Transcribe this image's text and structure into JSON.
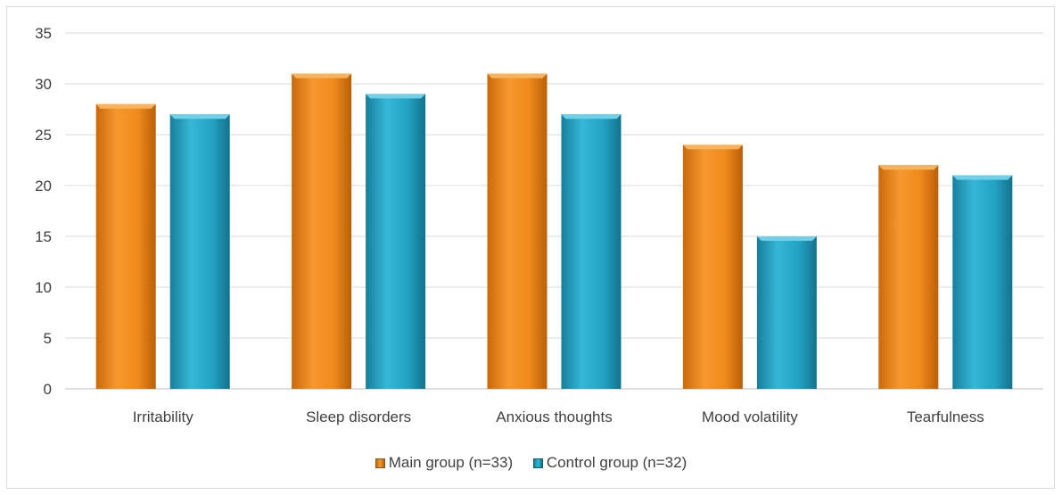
{
  "chart_data": {
    "type": "bar",
    "categories": [
      "Irritability",
      "Sleep disorders",
      "Anxious thoughts",
      "Mood volatility",
      "Tearfulness"
    ],
    "series": [
      {
        "name": "Main group (n=33)",
        "values": [
          28,
          31,
          31,
          24,
          22
        ],
        "color": "#f08a1c"
      },
      {
        "name": "Control group (n=32)",
        "values": [
          27,
          29,
          27,
          15,
          21
        ],
        "color": "#23a3c4"
      }
    ],
    "title": "",
    "xlabel": "",
    "ylabel": "",
    "ylim": [
      0,
      35
    ],
    "yticks": [
      "0",
      "5",
      "10",
      "15",
      "20",
      "25",
      "30",
      "35"
    ],
    "grid": true,
    "legend_position": "bottom"
  }
}
